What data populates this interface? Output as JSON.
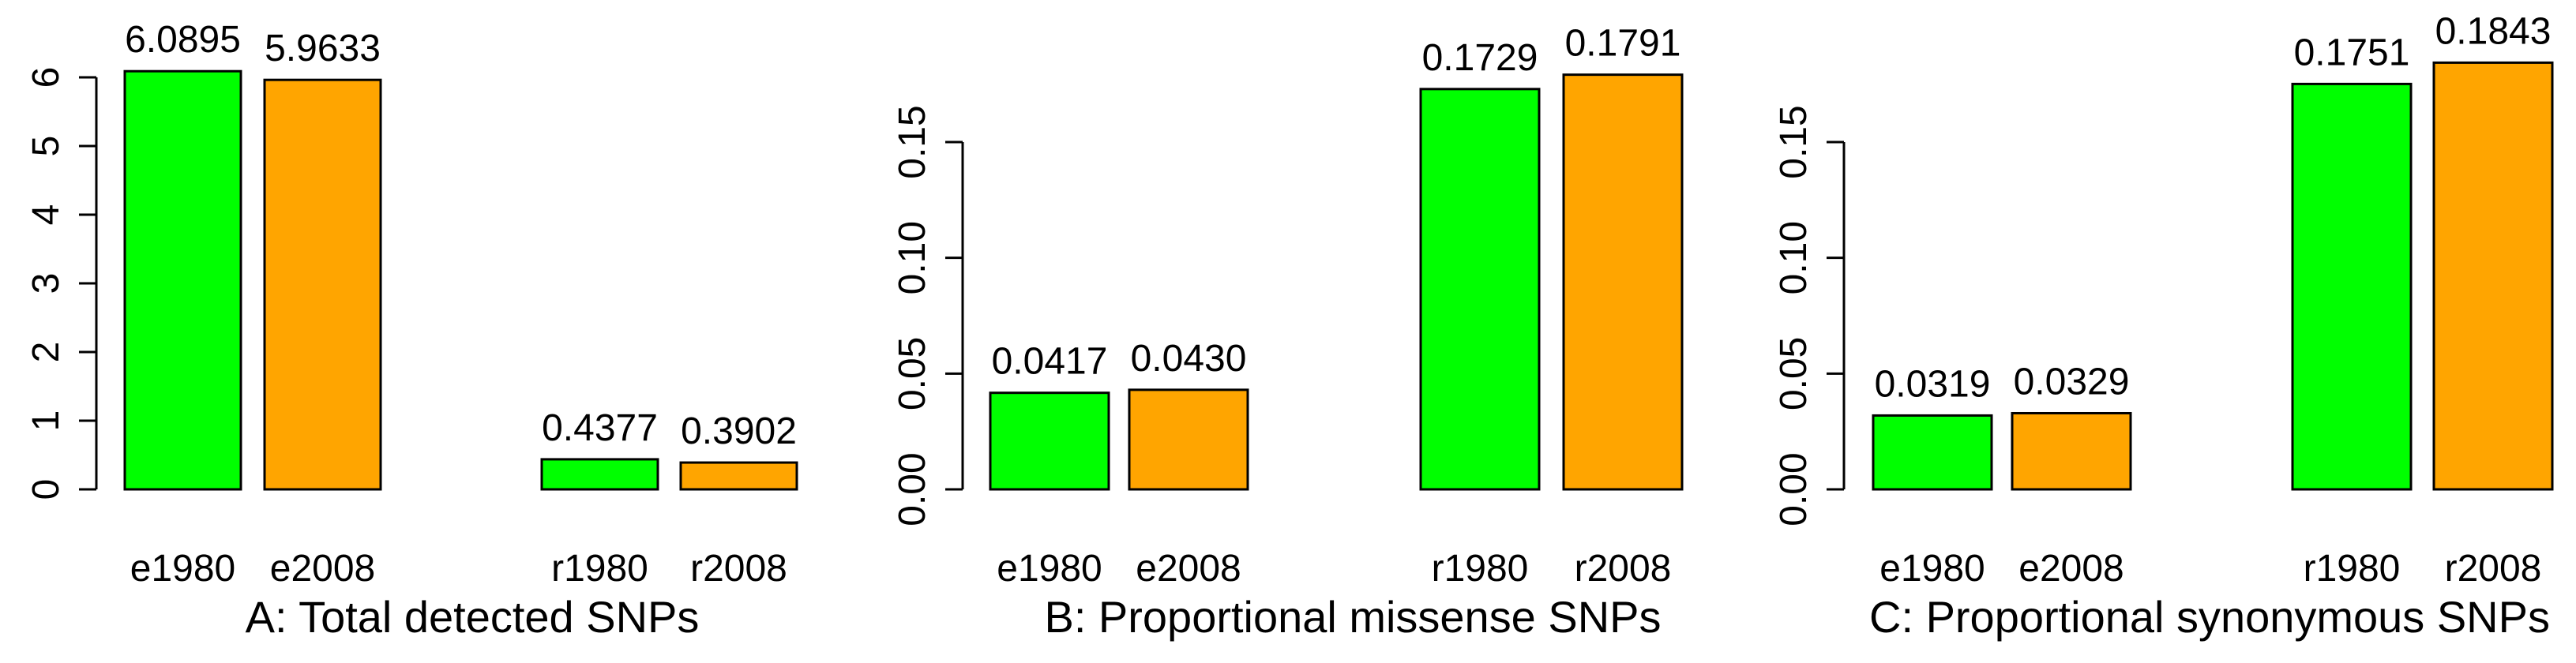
{
  "figure": {
    "background": "#ffffff",
    "text_color": "#000000",
    "bar_border_color": "#000000",
    "green_hex": "#00ff00",
    "orange_hex": "#ffa500"
  },
  "chart_data": [
    {
      "type": "bar",
      "panel_letter": "A",
      "title": "A: Total detected SNPs",
      "xlabel": "A: Total detected SNPs",
      "ylabel": "",
      "categories": [
        "e1980",
        "e2008",
        "r1980",
        "r2008"
      ],
      "values": [
        6.0895,
        5.9633,
        0.4377,
        0.3902
      ],
      "value_labels": [
        "6.0895",
        "5.9633",
        "0.4377",
        "0.3902"
      ],
      "bar_colors": [
        "#00ff00",
        "#ffa500",
        "#00ff00",
        "#ffa500"
      ],
      "ylim": [
        0,
        6
      ],
      "yticks": [
        0,
        1,
        2,
        3,
        4,
        5,
        6
      ],
      "ytick_labels": [
        "0",
        "1",
        "2",
        "3",
        "4",
        "5",
        "6"
      ],
      "grid": false,
      "legend": "none"
    },
    {
      "type": "bar",
      "panel_letter": "B",
      "title": "B: Proportional missense SNPs",
      "xlabel": "B: Proportional missense SNPs",
      "ylabel": "",
      "categories": [
        "e1980",
        "e2008",
        "r1980",
        "r2008"
      ],
      "values": [
        0.0417,
        0.043,
        0.1729,
        0.1791
      ],
      "value_labels": [
        "0.0417",
        "0.0430",
        "0.1729",
        "0.1791"
      ],
      "bar_colors": [
        "#00ff00",
        "#ffa500",
        "#00ff00",
        "#ffa500"
      ],
      "ylim": [
        0,
        0.15
      ],
      "yticks": [
        0,
        0.05,
        0.1,
        0.15
      ],
      "ytick_labels": [
        "0.00",
        "0.05",
        "0.10",
        "0.15"
      ],
      "grid": false,
      "legend": "none"
    },
    {
      "type": "bar",
      "panel_letter": "C",
      "title": "C: Proportional synonymous SNPs",
      "xlabel": "C: Proportional synonymous SNPs",
      "ylabel": "",
      "categories": [
        "e1980",
        "e2008",
        "r1980",
        "r2008"
      ],
      "values": [
        0.0319,
        0.0329,
        0.1751,
        0.1843
      ],
      "value_labels": [
        "0.0319",
        "0.0329",
        "0.1751",
        "0.1843"
      ],
      "bar_colors": [
        "#00ff00",
        "#ffa500",
        "#00ff00",
        "#ffa500"
      ],
      "ylim": [
        0,
        0.15
      ],
      "yticks": [
        0,
        0.05,
        0.1,
        0.15
      ],
      "ytick_labels": [
        "0.00",
        "0.05",
        "0.10",
        "0.15"
      ],
      "grid": false,
      "legend": "none"
    }
  ]
}
